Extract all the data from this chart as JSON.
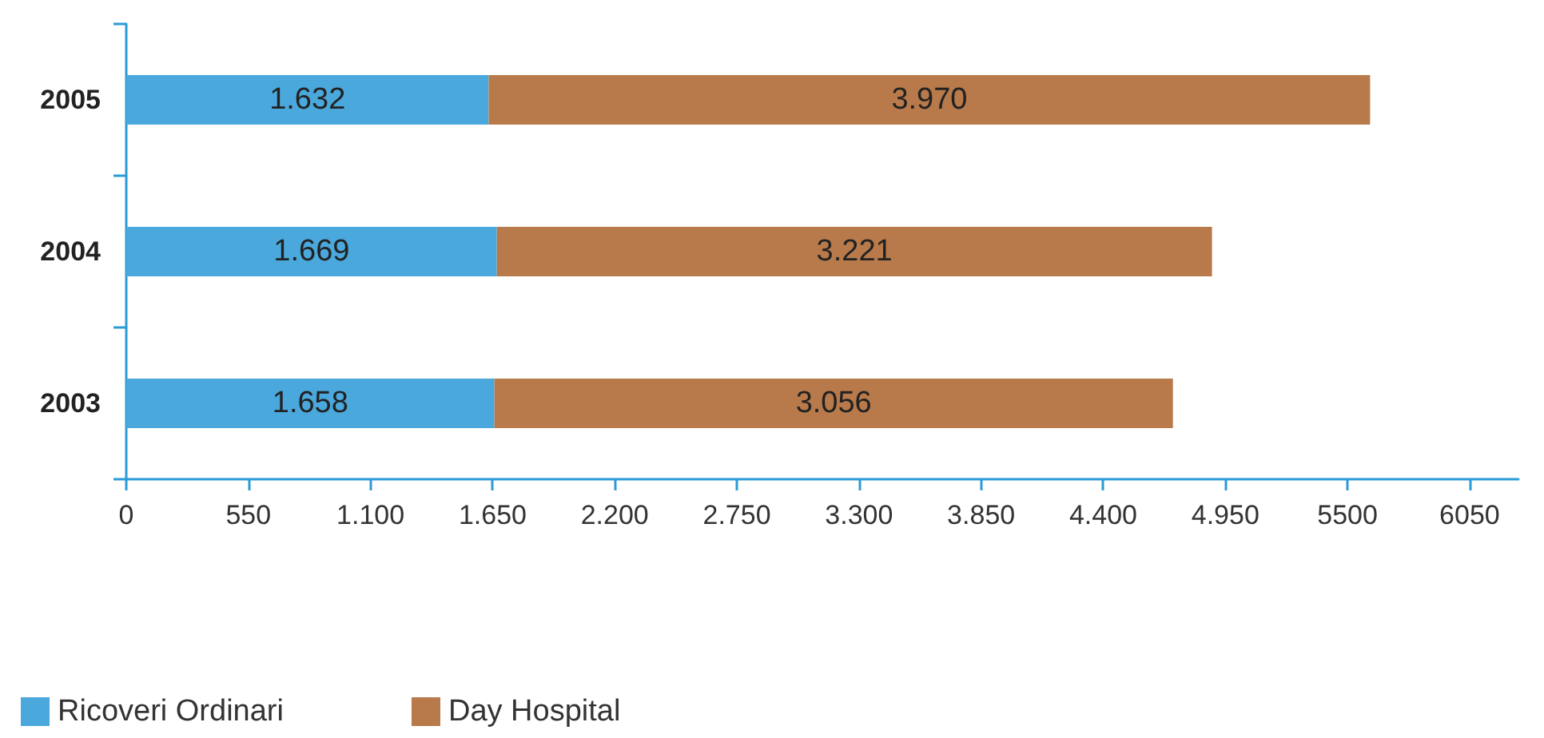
{
  "chart_data": {
    "type": "bar",
    "orientation": "horizontal",
    "stacked": true,
    "data_labels": true,
    "grid": false,
    "legend": "bottom left",
    "categories": [
      "2005",
      "2004",
      "2003"
    ],
    "series": [
      {
        "name": "Ricoveri Ordinari",
        "color": "#4aa8dc",
        "values": [
          1632,
          1669,
          1658
        ],
        "value_labels": [
          "1.632",
          "1.669",
          "1.658"
        ]
      },
      {
        "name": "Day Hospital",
        "color": "#b87a4a",
        "values": [
          3970,
          3221,
          3056
        ],
        "value_labels": [
          "3.970",
          "3.221",
          "3.056"
        ]
      }
    ],
    "xlim": [
      0,
      6270
    ],
    "xticks": [
      0,
      550,
      {
        "value": 1100,
        "label": "1.100"
      },
      {
        "value": 1650,
        "label": "1.650"
      },
      {
        "value": 2200,
        "label": "2.200"
      },
      {
        "value": 2750,
        "label": "2.750"
      },
      {
        "value": 3300,
        "label": "3.300"
      },
      {
        "value": 3850,
        "label": "3.850"
      },
      {
        "value": 4400,
        "label": "4.400"
      },
      {
        "value": 4950,
        "label": "4.950"
      },
      5500,
      6050
    ]
  }
}
